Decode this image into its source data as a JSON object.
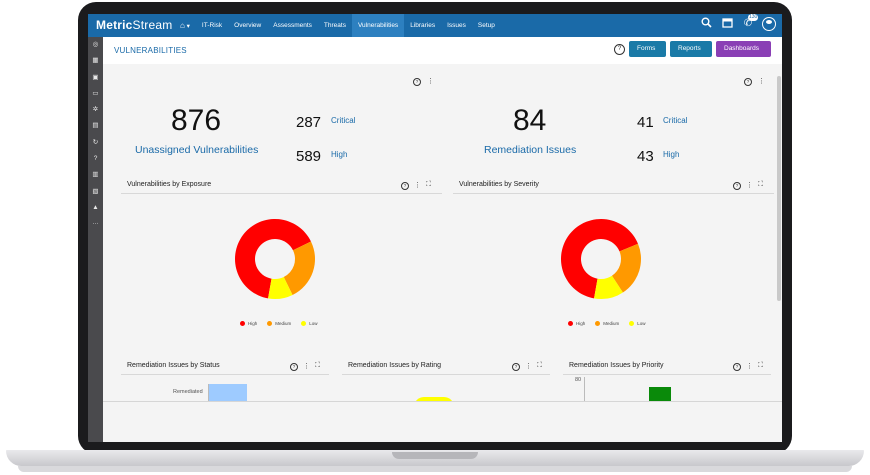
{
  "brand": {
    "name_bold": "Metric",
    "name_rest": "Stream"
  },
  "nav": {
    "home_icon": "home-icon",
    "items": [
      "IT-Risk",
      "Overview",
      "Assessments",
      "Threats",
      "Vulnerabilities",
      "Libraries",
      "Issues",
      "Setup"
    ],
    "active": "Vulnerabilities",
    "badge": "130"
  },
  "page": {
    "title": "VULNERABILITIES",
    "buttons": {
      "forms": "Forms ▾",
      "reports": "Reports ▾",
      "dashboards": "Dashboards ▾"
    }
  },
  "kpis": {
    "left": {
      "big": "876",
      "label": "Unassigned Vulnerabilities",
      "critical_value": "287",
      "critical_label": "Critical",
      "high_value": "589",
      "high_label": "High"
    },
    "right": {
      "big": "84",
      "label": "Remediation Issues",
      "critical_value": "41",
      "critical_label": "Critical",
      "high_value": "43",
      "high_label": "High"
    }
  },
  "charts": {
    "exposure_title": "Vulnerabilities by Exposure",
    "severity_title": "Vulnerabilities by Severity",
    "status_title": "Remediation Issues by Status",
    "rating_title": "Remediation Issues by Rating",
    "priority_title": "Remediation Issues by Priority",
    "status_bar_label": "Remediated",
    "priority_axis_tick": "80"
  },
  "chart_data": [
    {
      "type": "pie",
      "title": "Vulnerabilities by Exposure",
      "categories": [
        "High",
        "Medium",
        "Low"
      ],
      "values": [
        65,
        25,
        10
      ],
      "colors": [
        "#ff0000",
        "#ff9900",
        "#ffff00"
      ]
    },
    {
      "type": "pie",
      "title": "Vulnerabilities by Severity",
      "categories": [
        "High",
        "Medium",
        "Low"
      ],
      "values": [
        66,
        22,
        12
      ],
      "colors": [
        "#ff0000",
        "#ff9900",
        "#ffff00"
      ]
    }
  ],
  "legend": {
    "high": "High",
    "medium": "Medium",
    "low": "Low"
  },
  "colors": {
    "nav": "#1a6aa8",
    "accent": "#1a6aa8",
    "dashboards": "#8a3fb5",
    "forms": "#1a7aa7"
  }
}
